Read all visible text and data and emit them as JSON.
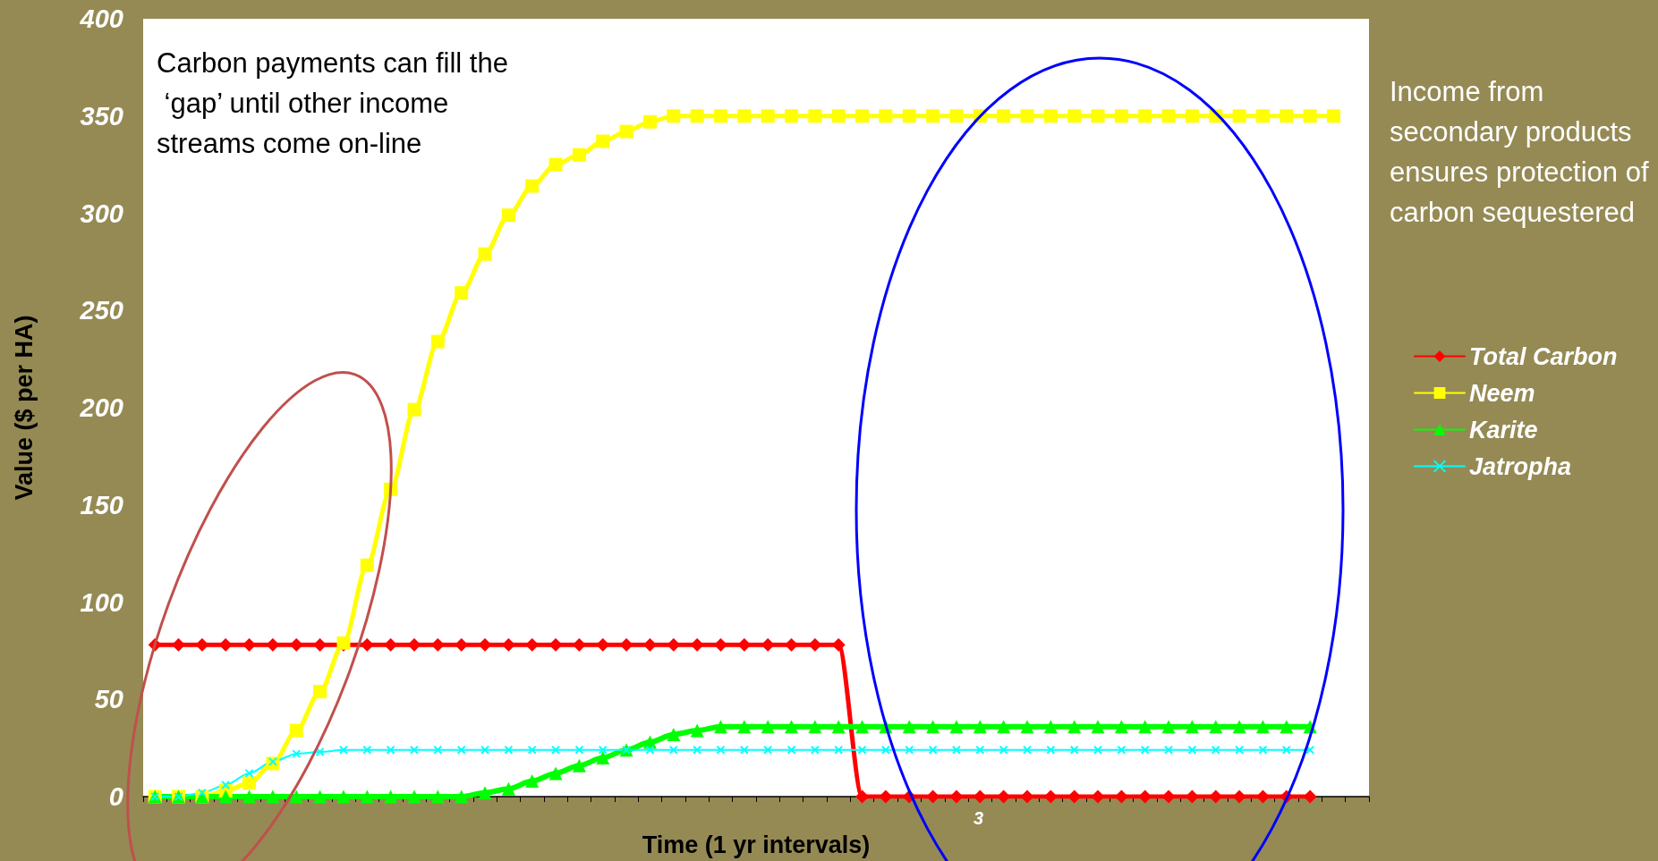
{
  "chart_data": {
    "type": "line",
    "xlabel": "Time (1 yr intervals)",
    "ylabel": "Value ($ per HA)",
    "categories": [
      null,
      null,
      null,
      null,
      null,
      null,
      null,
      null,
      null,
      null,
      null,
      null,
      null,
      null,
      null,
      null,
      null,
      null,
      null,
      null,
      null,
      null,
      null,
      null,
      null,
      null,
      null,
      null,
      null,
      null,
      null,
      null,
      null,
      null,
      null,
      null,
      null,
      null,
      null,
      null,
      null,
      null,
      null,
      null,
      null,
      null,
      null,
      null,
      null,
      null,
      null,
      null
    ],
    "series": [
      {
        "name": "Total Carbon",
        "color": "#ff0000",
        "marker": "diamond",
        "values": [
          78,
          78,
          78,
          78,
          78,
          78,
          78,
          78,
          78,
          78,
          78,
          78,
          78,
          78,
          78,
          78,
          78,
          78,
          78,
          78,
          78,
          78,
          78,
          78,
          78,
          78,
          78,
          78,
          78,
          78,
          0,
          0,
          0,
          0,
          0,
          0,
          0,
          0,
          0,
          0,
          0,
          0,
          0,
          0,
          0,
          0,
          0,
          0,
          0,
          0,
          null,
          null
        ]
      },
      {
        "name": "Neem",
        "color": "#ffff00",
        "marker": "square",
        "values": [
          0,
          0,
          0,
          3,
          7,
          17,
          34,
          54,
          79,
          119,
          158,
          199,
          234,
          259,
          279,
          299,
          314,
          325,
          330,
          337,
          342,
          347,
          350,
          350,
          350,
          350,
          350,
          350,
          350,
          350,
          350,
          350,
          350,
          350,
          350,
          350,
          350,
          350,
          350,
          350,
          350,
          350,
          350,
          350,
          350,
          350,
          350,
          350,
          350,
          350,
          350,
          null
        ]
      },
      {
        "name": "Karite",
        "color": "#00ff00",
        "marker": "triangle",
        "values": [
          0,
          0,
          0,
          0,
          0,
          0,
          0,
          0,
          0,
          0,
          0,
          0,
          0,
          0,
          2,
          4,
          8,
          12,
          16,
          20,
          24,
          28,
          32,
          34,
          36,
          36,
          36,
          36,
          36,
          36,
          36,
          36,
          36,
          36,
          36,
          36,
          36,
          36,
          36,
          36,
          36,
          36,
          36,
          36,
          36,
          36,
          36,
          36,
          36,
          36,
          null,
          null
        ]
      },
      {
        "name": "Jatropha",
        "color": "#00ffff",
        "marker": "cross",
        "values": [
          0,
          0,
          2,
          6,
          12,
          18,
          22,
          23,
          24,
          24,
          24,
          24,
          24,
          24,
          24,
          24,
          24,
          24,
          24,
          24,
          24,
          24,
          24,
          24,
          24,
          24,
          24,
          24,
          24,
          24,
          24,
          24,
          24,
          24,
          24,
          24,
          24,
          24,
          24,
          24,
          24,
          24,
          24,
          24,
          24,
          24,
          24,
          24,
          24,
          24,
          null,
          null
        ]
      }
    ],
    "ylim": [
      0,
      400
    ],
    "yticks": [
      0,
      50,
      100,
      150,
      200,
      250,
      300,
      350,
      400
    ],
    "legend": "right",
    "grid": false,
    "tick_labels": "y",
    "annotations": [
      "Carbon payments can fill the ‘gap’ until other income streams come on-line",
      "Income from secondary products ensures protection of carbon sequestered",
      "3"
    ]
  }
}
